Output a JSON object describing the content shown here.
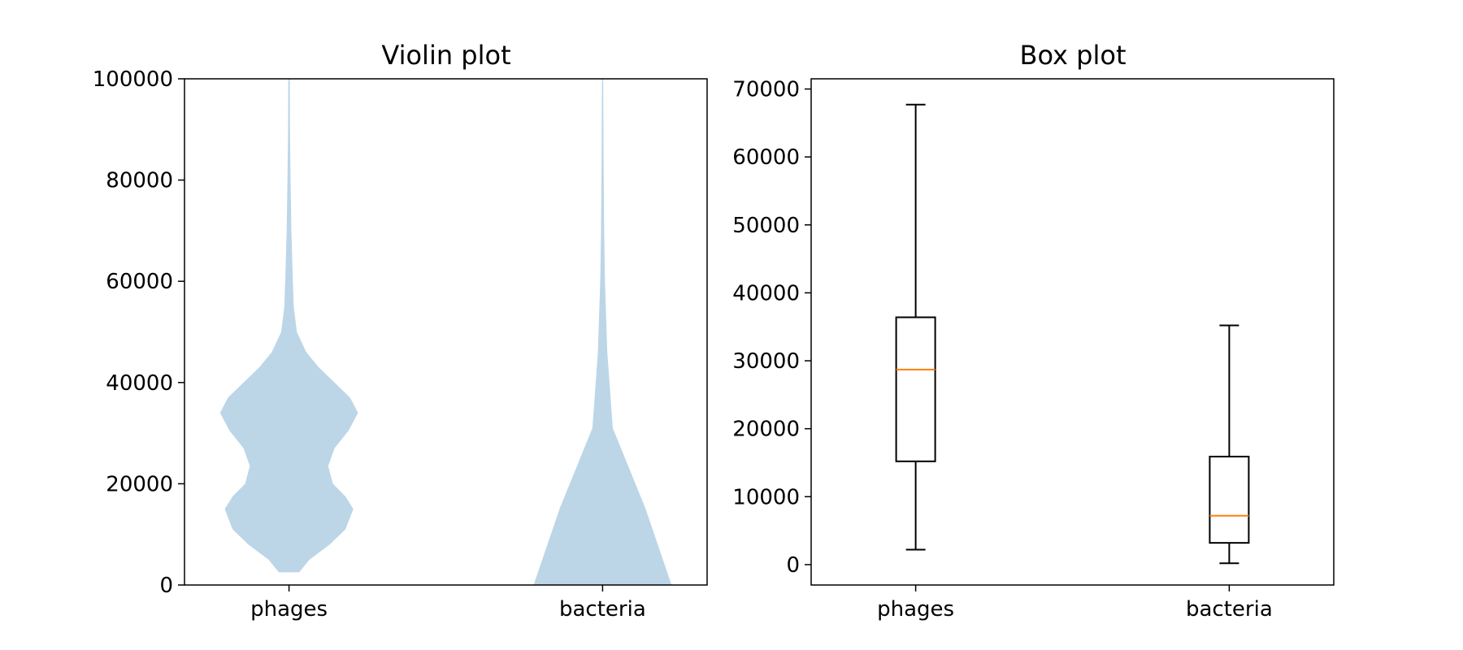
{
  "chart_data": [
    {
      "type": "violin",
      "title": "Violin plot",
      "categories": [
        "phages",
        "bacteria"
      ],
      "ylim": [
        0,
        100000
      ],
      "yticks": [
        0,
        20000,
        40000,
        60000,
        80000,
        100000
      ],
      "ytick_labels": [
        "0",
        "20000",
        "40000",
        "60000",
        "80000",
        "100000"
      ],
      "color": "#bcd6e8",
      "series": [
        {
          "category": "phages",
          "profile": [
            [
              2500,
              0.13
            ],
            [
              5000,
              0.26
            ],
            [
              8000,
              0.52
            ],
            [
              11000,
              0.72
            ],
            [
              15000,
              0.82
            ],
            [
              17500,
              0.72
            ],
            [
              20000,
              0.56
            ],
            [
              23500,
              0.5
            ],
            [
              27000,
              0.58
            ],
            [
              30500,
              0.76
            ],
            [
              34000,
              0.88
            ],
            [
              37000,
              0.78
            ],
            [
              40000,
              0.58
            ],
            [
              43000,
              0.38
            ],
            [
              46000,
              0.22
            ],
            [
              50000,
              0.1
            ],
            [
              55000,
              0.06
            ],
            [
              62000,
              0.045
            ],
            [
              70000,
              0.03
            ],
            [
              80000,
              0.02
            ],
            [
              90000,
              0.012
            ],
            [
              100000,
              0.01
            ]
          ]
        },
        {
          "category": "bacteria",
          "profile": [
            [
              0,
              0.88
            ],
            [
              15000,
              0.55
            ],
            [
              31000,
              0.13
            ],
            [
              46000,
              0.06
            ],
            [
              60000,
              0.03
            ],
            [
              70000,
              0.02
            ],
            [
              85000,
              0.012
            ],
            [
              100000,
              0.008
            ]
          ]
        }
      ]
    },
    {
      "type": "box",
      "title": "Box plot",
      "categories": [
        "phages",
        "bacteria"
      ],
      "ylim": [
        -3000,
        71500
      ],
      "yticks": [
        0,
        10000,
        20000,
        30000,
        40000,
        50000,
        60000,
        70000
      ],
      "ytick_labels": [
        "0",
        "10000",
        "20000",
        "30000",
        "40000",
        "50000",
        "60000",
        "70000"
      ],
      "median_color": "#ff7f0e",
      "series": [
        {
          "category": "phages",
          "whisker_low": 2200,
          "q1": 15200,
          "median": 28700,
          "q3": 36400,
          "whisker_high": 67700
        },
        {
          "category": "bacteria",
          "whisker_low": 200,
          "q1": 3200,
          "median": 7200,
          "q3": 15900,
          "whisker_high": 35200
        }
      ]
    }
  ]
}
